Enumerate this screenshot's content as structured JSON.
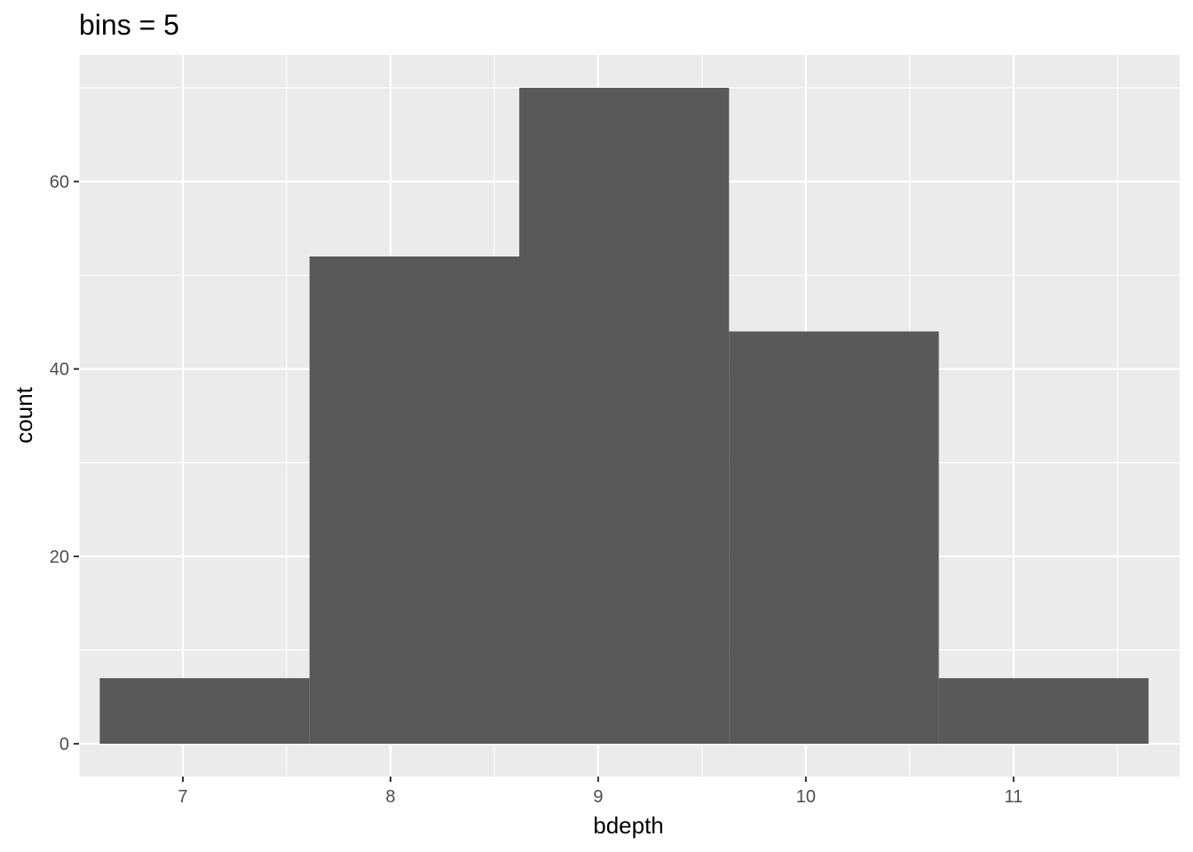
{
  "chart_data": {
    "type": "bar",
    "title": "bins = 5",
    "xlabel": "bdepth",
    "ylabel": "count",
    "bins": [
      {
        "x0": 6.6,
        "x1": 7.61,
        "count": 7
      },
      {
        "x0": 7.61,
        "x1": 8.62,
        "count": 52
      },
      {
        "x0": 8.62,
        "x1": 9.63,
        "count": 70
      },
      {
        "x0": 9.63,
        "x1": 10.64,
        "count": 44
      },
      {
        "x0": 10.64,
        "x1": 11.65,
        "count": 7
      }
    ],
    "xlim": [
      6.5,
      11.8
    ],
    "ylim": [
      -3.5,
      73.5
    ],
    "x_ticks": [
      7,
      8,
      9,
      10,
      11
    ],
    "y_ticks": [
      0,
      20,
      40,
      60
    ],
    "x_minor_ticks": [
      6.5,
      7.5,
      8.5,
      9.5,
      10.5,
      11.5
    ],
    "y_minor_ticks": [
      10,
      30,
      50,
      70
    ],
    "grid": true,
    "colors": {
      "panel_background": "#ebebeb",
      "grid": "#ffffff",
      "bar_fill": "#595959",
      "tick_label": "#4d4d4d",
      "tick_mark": "#333333"
    }
  }
}
